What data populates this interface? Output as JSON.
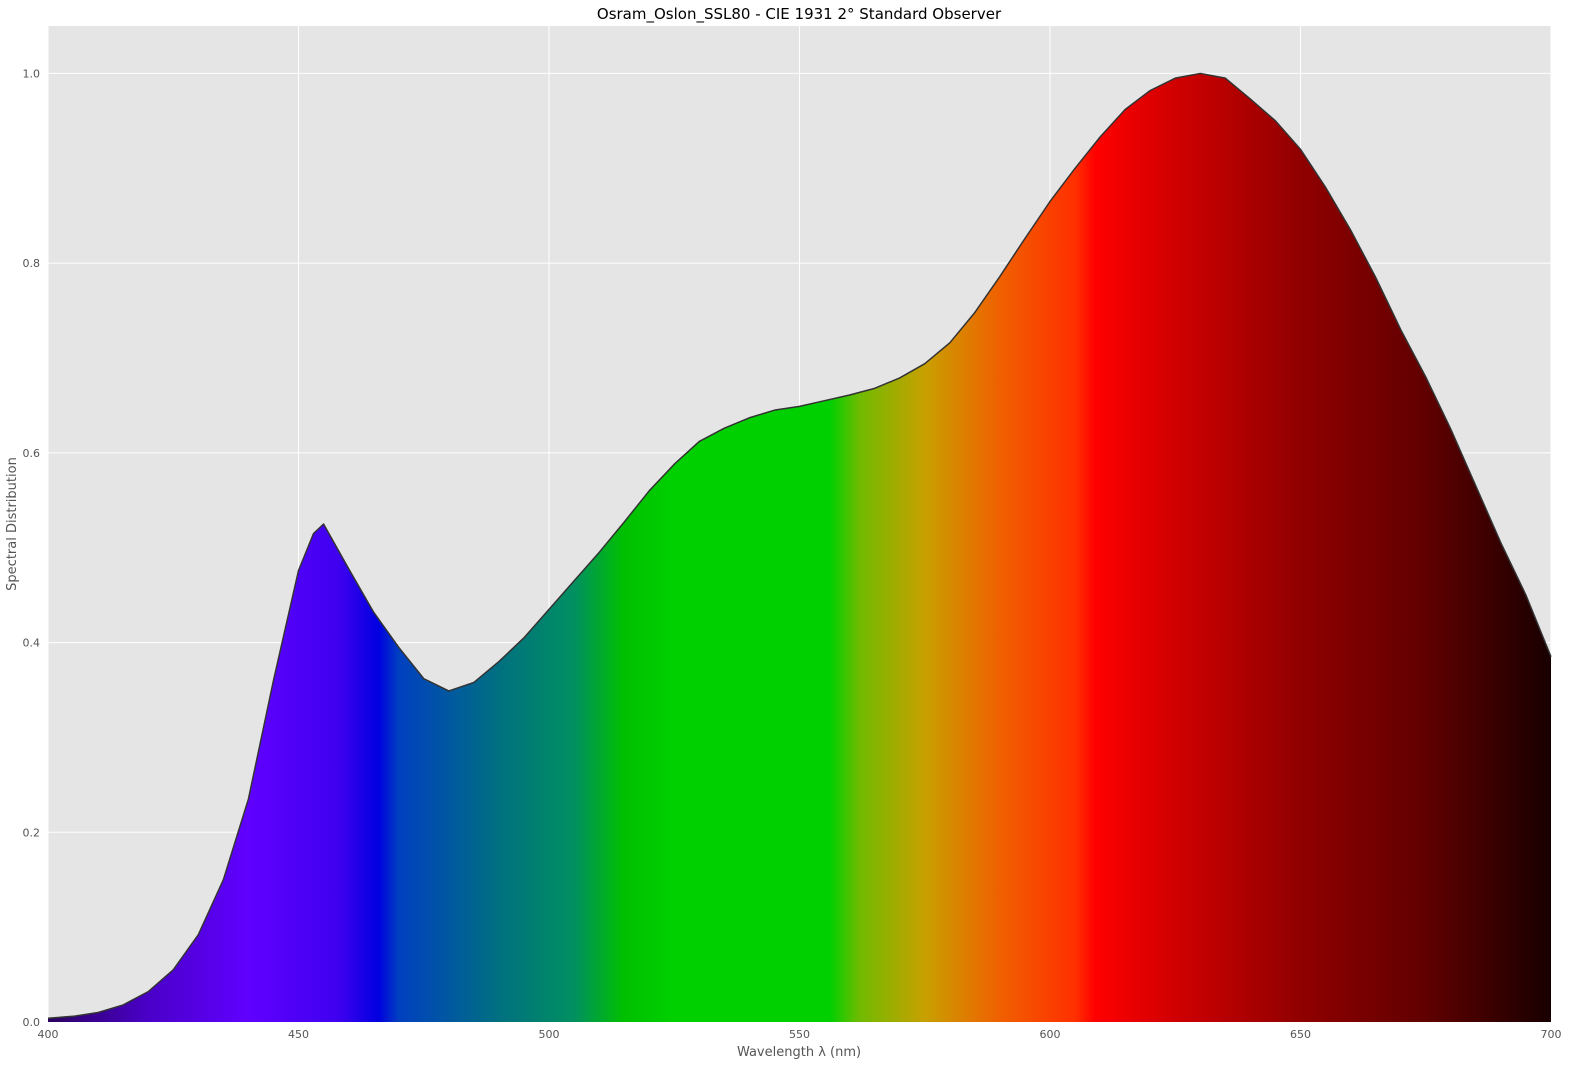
{
  "chart_data": {
    "type": "area",
    "title": "Osram_Oslon_SSL80 - CIE 1931 2° Standard Observer",
    "x_label": "Wavelength λ (nm)",
    "y_label": "Spectral Distribution",
    "x": [
      400,
      405,
      410,
      415,
      420,
      425,
      430,
      435,
      440,
      445,
      450,
      453,
      455,
      460,
      465,
      470,
      475,
      480,
      485,
      490,
      495,
      500,
      505,
      510,
      515,
      520,
      525,
      530,
      535,
      540,
      545,
      550,
      555,
      560,
      565,
      570,
      575,
      580,
      585,
      590,
      595,
      600,
      605,
      610,
      615,
      620,
      625,
      630,
      635,
      640,
      645,
      650,
      655,
      660,
      665,
      670,
      675,
      680,
      685,
      690,
      695,
      700
    ],
    "series": [
      {
        "name": "Osram_Oslon_SSL80",
        "color": "#333333",
        "values": [
          0.004,
          0.006,
          0.01,
          0.018,
          0.032,
          0.055,
          0.092,
          0.15,
          0.235,
          0.36,
          0.476,
          0.515,
          0.525,
          0.478,
          0.432,
          0.395,
          0.362,
          0.349,
          0.358,
          0.38,
          0.405,
          0.435,
          0.465,
          0.495,
          0.527,
          0.56,
          0.588,
          0.612,
          0.626,
          0.637,
          0.645,
          0.649,
          0.655,
          0.661,
          0.668,
          0.679,
          0.694,
          0.716,
          0.748,
          0.786,
          0.826,
          0.865,
          0.9,
          0.933,
          0.962,
          0.982,
          0.995,
          1.0,
          0.995,
          0.973,
          0.95,
          0.92,
          0.88,
          0.835,
          0.785,
          0.73,
          0.68,
          0.625,
          0.565,
          0.505,
          0.45,
          0.385
        ]
      }
    ],
    "xlim": [
      400,
      700
    ],
    "xticks": [
      400,
      450,
      500,
      550,
      600,
      650,
      700
    ],
    "ylim": [
      0,
      1.05
    ],
    "yticks": [
      {
        "value": 0,
        "label": "0.0"
      },
      0.2,
      0.4,
      0.6,
      0.8,
      {
        "value": 1,
        "label": "1.0"
      }
    ],
    "grid": true
  }
}
